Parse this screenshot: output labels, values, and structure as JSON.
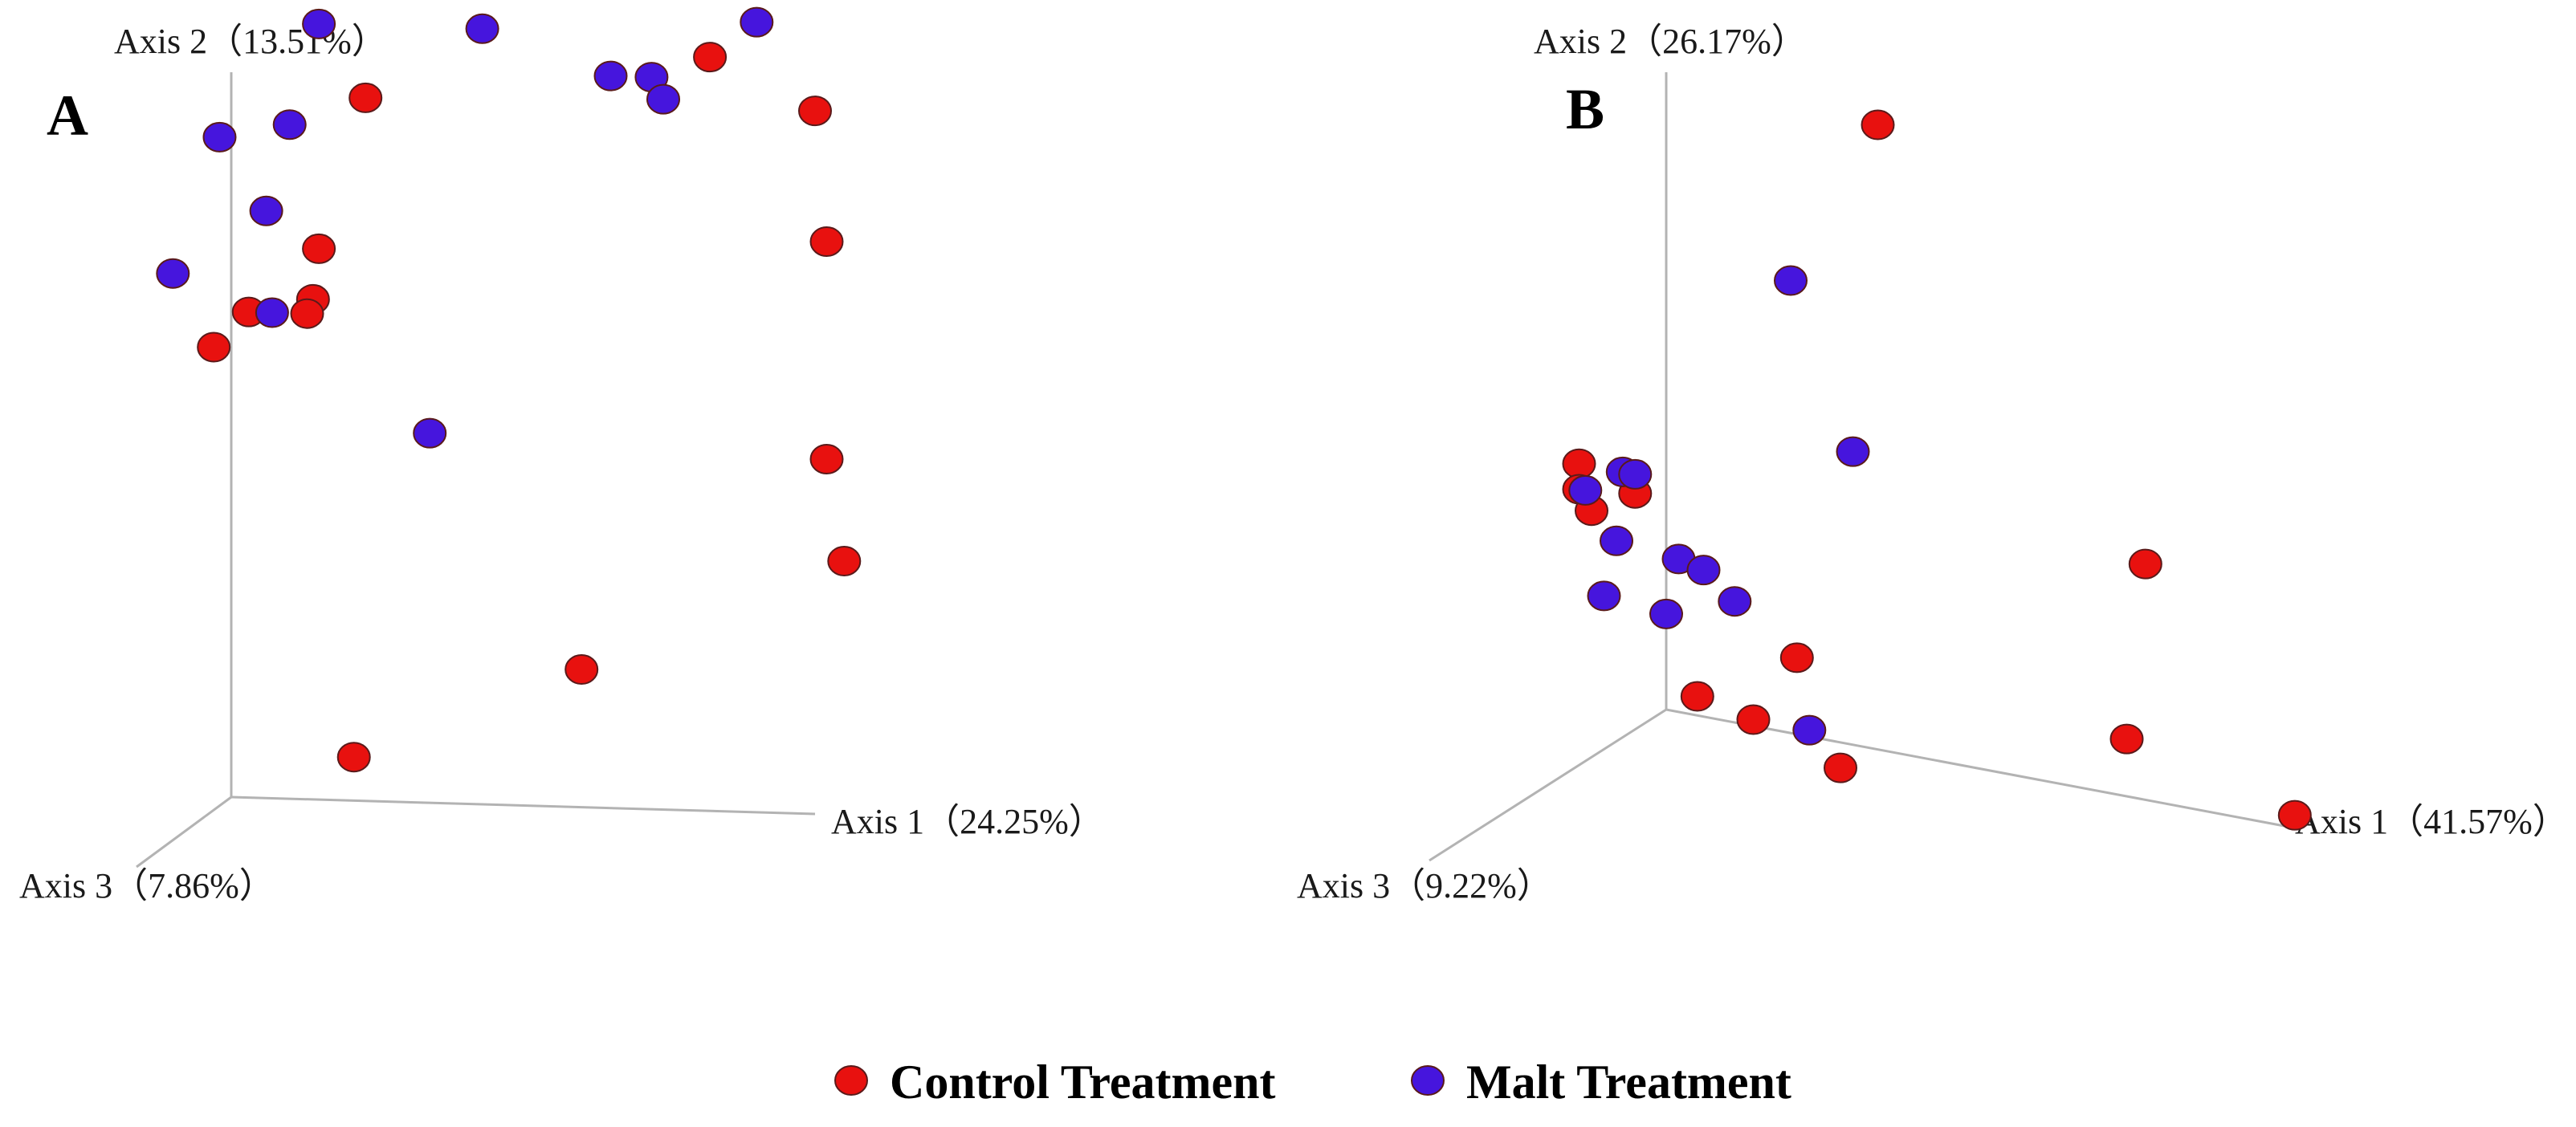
{
  "chart_data": [
    {
      "type": "scatter",
      "panel": "A",
      "axis_labels": {
        "axis1": "Axis 1（24.25%）",
        "axis2": "Axis 2（13.51%）",
        "axis3": "Axis 3（7.86%）"
      },
      "series": [
        {
          "name": "Control Treatment",
          "points": [
            [
              0.23,
              0.97
            ],
            [
              0.82,
              1.04
            ],
            [
              1.0,
              0.97
            ],
            [
              1.02,
              0.79
            ],
            [
              0.15,
              0.76
            ],
            [
              0.14,
              0.69
            ],
            [
              0.03,
              0.67
            ],
            [
              0.13,
              0.67
            ],
            [
              -0.03,
              0.62
            ],
            [
              1.02,
              0.49
            ],
            [
              1.05,
              0.35
            ],
            [
              0.6,
              0.19
            ],
            [
              0.21,
              0.06
            ]
          ]
        },
        {
          "name": "Malt Treatment",
          "points": [
            [
              0.15,
              1.07
            ],
            [
              0.43,
              1.07
            ],
            [
              0.9,
              1.09
            ],
            [
              0.65,
              1.01
            ],
            [
              0.72,
              1.01
            ],
            [
              0.74,
              0.98
            ],
            [
              0.1,
              0.93
            ],
            [
              -0.02,
              0.91
            ],
            [
              0.06,
              0.81
            ],
            [
              0.07,
              0.67
            ],
            [
              -0.1,
              0.72
            ],
            [
              0.34,
              0.51
            ]
          ]
        }
      ]
    },
    {
      "type": "scatter",
      "panel": "B",
      "axis_labels": {
        "axis1": "Axis 1（41.57%）",
        "axis2": "Axis 2（26.17%）",
        "axis3": "Axis 3（9.22%）"
      },
      "series": [
        {
          "name": "Control Treatment",
          "points": [
            [
              0.34,
              0.98
            ],
            [
              0.77,
              0.37
            ],
            [
              -0.14,
              0.36
            ],
            [
              -0.05,
              0.33
            ],
            [
              -0.14,
              0.32
            ],
            [
              -0.12,
              0.29
            ],
            [
              0.21,
              0.12
            ],
            [
              0.74,
              0.09
            ],
            [
              1.01,
              0.02
            ],
            [
              0.05,
              0.03
            ],
            [
              0.14,
              0.01
            ],
            [
              0.28,
              -0.04
            ]
          ]
        },
        {
          "name": "Malt Treatment",
          "points": [
            [
              0.2,
              0.71
            ],
            [
              0.3,
              0.46
            ],
            [
              -0.07,
              0.36
            ],
            [
              -0.05,
              0.36
            ],
            [
              -0.13,
              0.32
            ],
            [
              -0.08,
              0.25
            ],
            [
              0.02,
              0.24
            ],
            [
              0.06,
              0.23
            ],
            [
              0.11,
              0.19
            ],
            [
              -0.1,
              0.16
            ],
            [
              0.0,
              0.15
            ],
            [
              0.23,
              0.01
            ]
          ]
        }
      ]
    }
  ],
  "colors": {
    "control": "#e8110f",
    "malt": "#4615dd",
    "outline": "#5a1a1a"
  },
  "legend": {
    "control_label": "Control Treatment",
    "malt_label": "Malt Treatment"
  }
}
